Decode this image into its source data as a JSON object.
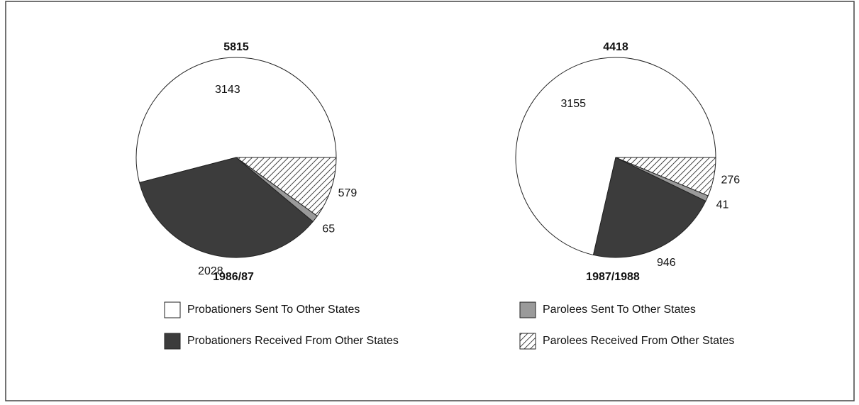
{
  "legend": {
    "labels": [
      "Probationers Sent To Other States",
      "Probationers Received From Other States",
      "Parolees Sent To Other States",
      "Parolees Received From Other States"
    ],
    "colors": [
      "#ffffff",
      "#3c3c3c",
      "#9a9a9a",
      "hatched"
    ]
  },
  "chart_data": [
    {
      "type": "pie",
      "title": "5815",
      "subtitle": "1986/87",
      "values": [
        3143,
        2028,
        65,
        579
      ]
    },
    {
      "type": "pie",
      "title": "4418",
      "subtitle": "1987/1988",
      "values": [
        3155,
        946,
        41,
        276
      ]
    }
  ]
}
